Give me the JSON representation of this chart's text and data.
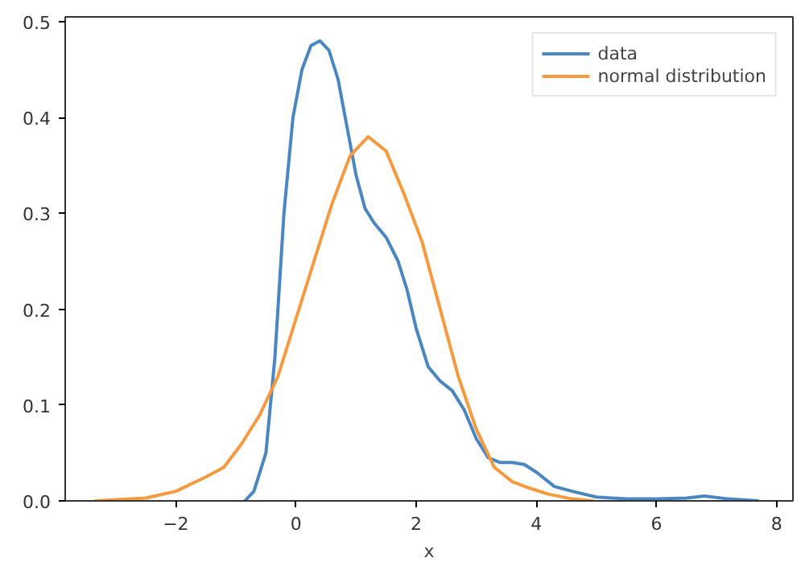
{
  "chart_data": {
    "type": "line",
    "xlabel": "x",
    "xlim": [
      -3.84,
      8.27
    ],
    "ylim": [
      0,
      0.505
    ],
    "xticks": [
      {
        "value": -2,
        "label": "−2"
      },
      0,
      2,
      4,
      6,
      8
    ],
    "yticks": [
      {
        "value": 0,
        "label": "0.0"
      },
      0.1,
      0.2,
      0.3,
      0.4,
      0.5
    ],
    "grid": false,
    "legend": "top right",
    "series": [
      {
        "name": "data",
        "color": "#4a87c0",
        "x": [
          -0.85,
          -0.7,
          -0.5,
          -0.35,
          -0.2,
          -0.05,
          0.1,
          0.25,
          0.4,
          0.55,
          0.7,
          0.85,
          1.0,
          1.15,
          1.3,
          1.5,
          1.7,
          1.85,
          2.0,
          2.2,
          2.4,
          2.6,
          2.8,
          3.0,
          3.2,
          3.4,
          3.6,
          3.8,
          4.0,
          4.3,
          4.6,
          5.0,
          5.5,
          6.0,
          6.5,
          6.8,
          7.2,
          7.7
        ],
        "values": [
          0,
          0.01,
          0.05,
          0.15,
          0.3,
          0.4,
          0.45,
          0.475,
          0.48,
          0.47,
          0.44,
          0.39,
          0.34,
          0.305,
          0.29,
          0.275,
          0.25,
          0.22,
          0.18,
          0.14,
          0.125,
          0.115,
          0.095,
          0.065,
          0.045,
          0.04,
          0.04,
          0.038,
          0.03,
          0.015,
          0.01,
          0.004,
          0.002,
          0.002,
          0.003,
          0.005,
          0.002,
          0
        ]
      },
      {
        "name": "normal distribution",
        "color": "#f59a3e",
        "x": [
          -3.35,
          -2.5,
          -2,
          -1.5,
          -1.2,
          -0.9,
          -0.6,
          -0.3,
          0,
          0.3,
          0.6,
          0.9,
          1.2,
          1.5,
          1.8,
          2.1,
          2.4,
          2.7,
          3.0,
          3.3,
          3.6,
          3.9,
          4.2,
          4.6,
          4.95
        ],
        "values": [
          0,
          0.003,
          0.01,
          0.025,
          0.035,
          0.06,
          0.09,
          0.13,
          0.19,
          0.25,
          0.31,
          0.36,
          0.38,
          0.365,
          0.32,
          0.27,
          0.2,
          0.13,
          0.075,
          0.035,
          0.02,
          0.013,
          0.007,
          0.002,
          0
        ]
      }
    ]
  }
}
